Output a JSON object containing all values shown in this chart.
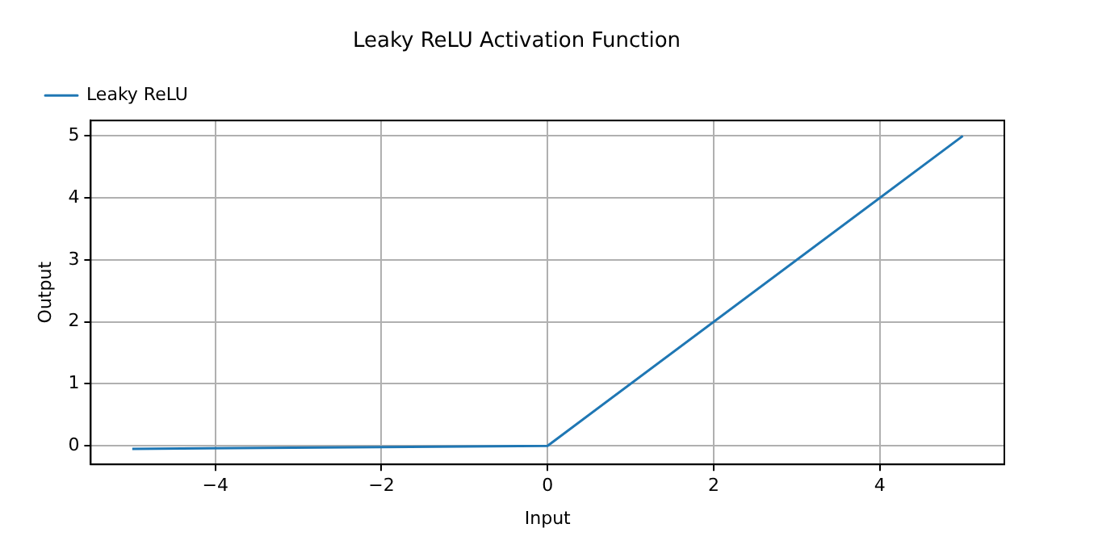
{
  "chart_data": {
    "type": "line",
    "title": "Leaky ReLU Activation Function",
    "xlabel": "Input",
    "ylabel": "Output",
    "x": [
      -5,
      0,
      5
    ],
    "series": [
      {
        "name": "Leaky ReLU",
        "color": "#1f77b4",
        "values": [
          -0.05,
          0,
          5
        ]
      }
    ],
    "xlim": [
      -5.5,
      5.5
    ],
    "xticks": [
      {
        "value": -4,
        "label": "−4"
      },
      {
        "value": -2,
        "label": "−2"
      },
      0,
      2,
      4
    ],
    "ylim": [
      -0.3,
      5.25
    ],
    "yticks": [
      0,
      1,
      2,
      3,
      4,
      5
    ],
    "grid": true,
    "legend": "top left",
    "marker": "none",
    "line_style": "solid"
  }
}
